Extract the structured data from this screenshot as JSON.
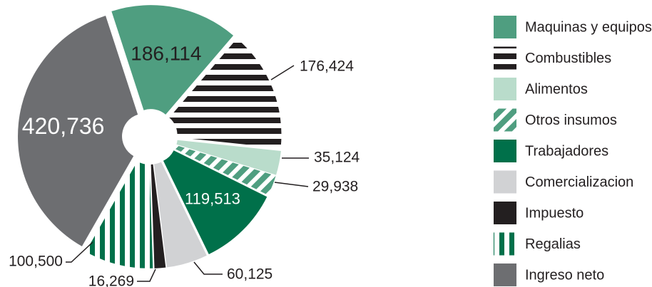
{
  "chart_data": {
    "type": "pie",
    "categories": [
      "Maquinas y equipos",
      "Combustibles",
      "Alimentos",
      "Otros insumos",
      "Trabajadores",
      "Comercializacion",
      "Impuesto",
      "Regalias",
      "Ingreso neto"
    ],
    "values": [
      186114,
      176424,
      35124,
      29938,
      119513,
      60125,
      16269,
      100500,
      420736
    ],
    "value_labels": [
      "186,114",
      "176,424",
      "35,124",
      "29,938",
      "119,513",
      "60,125",
      "16,269",
      "100,500",
      "420,736"
    ],
    "colors": [
      "#4f9e80",
      "#231f20",
      "#b9dccb",
      "#4f9e80",
      "#00704a",
      "#d1d2d4",
      "#231f20",
      "#00704a",
      "#6d6e71"
    ],
    "patterns": [
      "solid",
      "horizontal-stripes",
      "solid",
      "diagonal-stripes",
      "solid",
      "solid",
      "solid",
      "vertical-stripes",
      "solid"
    ],
    "legend": "right"
  }
}
